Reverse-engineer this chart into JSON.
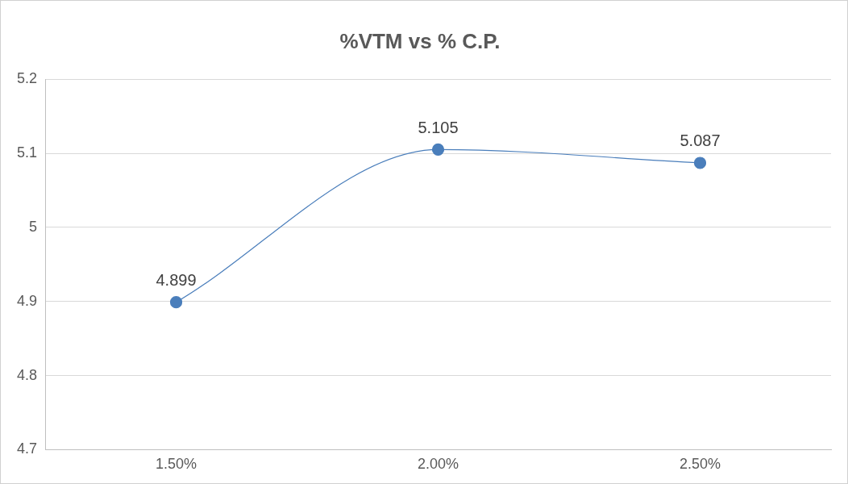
{
  "chart_data": {
    "type": "line",
    "title": "%VTM vs % C.P.",
    "categories": [
      "1.50%",
      "2.00%",
      "2.50%"
    ],
    "series": [
      {
        "color": "#4a7ebb",
        "values": [
          4.899,
          5.105,
          5.087
        ]
      }
    ],
    "ylim": [
      4.7,
      5.2
    ],
    "yticks": [
      4.7,
      4.8,
      4.9,
      5,
      5.1,
      5.2
    ],
    "grid": "y",
    "legend": false,
    "marker": "circle",
    "line_style": "solid",
    "data_labels": true
  }
}
